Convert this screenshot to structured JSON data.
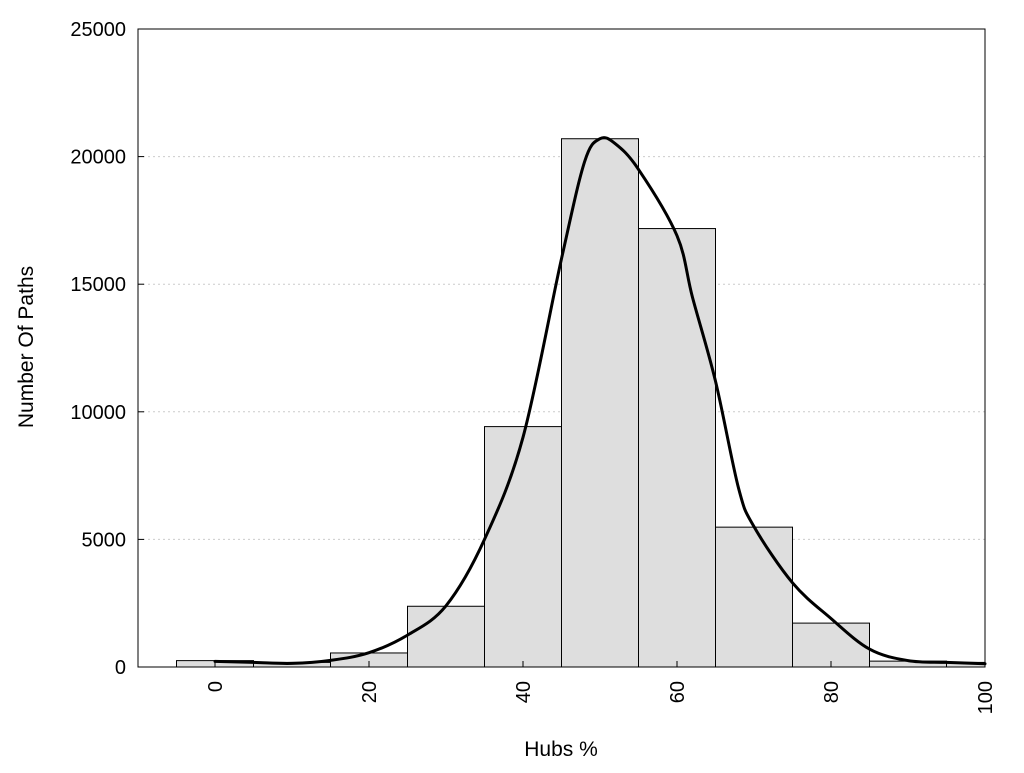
{
  "chart_data": {
    "type": "bar",
    "xlabel": "Hubs %",
    "ylabel": "Number Of Paths",
    "xlim": [
      -10,
      100
    ],
    "ylim": [
      0,
      25000
    ],
    "grid": "horizontal-dotted",
    "x_ticks": [
      "0",
      "20",
      "40",
      "60",
      "80",
      "100"
    ],
    "x_tick_values": [
      0,
      20,
      40,
      60,
      80,
      100
    ],
    "y_ticks": [
      "0",
      "5000",
      "10000",
      "15000",
      "20000",
      "25000"
    ],
    "y_tick_values": [
      0,
      5000,
      10000,
      15000,
      20000,
      25000
    ],
    "bins": [
      {
        "start": -5,
        "end": 5,
        "value": 250
      },
      {
        "start": 5,
        "end": 15,
        "value": 180
      },
      {
        "start": 15,
        "end": 25,
        "value": 550
      },
      {
        "start": 25,
        "end": 35,
        "value": 2380
      },
      {
        "start": 35,
        "end": 45,
        "value": 9420
      },
      {
        "start": 45,
        "end": 55,
        "value": 20700
      },
      {
        "start": 55,
        "end": 65,
        "value": 17180
      },
      {
        "start": 65,
        "end": 75,
        "value": 5480
      },
      {
        "start": 75,
        "end": 85,
        "value": 1720
      },
      {
        "start": 85,
        "end": 95,
        "value": 230
      },
      {
        "start": 95,
        "end": 100,
        "value": 180
      }
    ],
    "curve": {
      "x": [
        0,
        5,
        10,
        15,
        20,
        25,
        30,
        35,
        40,
        45,
        48,
        50,
        52,
        55,
        60,
        62,
        65,
        68,
        70,
        75,
        80,
        85,
        90,
        95,
        100
      ],
      "y": [
        220,
        180,
        140,
        260,
        560,
        1250,
        2400,
        5000,
        9000,
        16000,
        19800,
        20700,
        20500,
        19500,
        16900,
        14500,
        11200,
        7000,
        5500,
        3300,
        1900,
        700,
        250,
        180,
        130
      ]
    },
    "colors": {
      "bar_fill": "#dedede",
      "bar_stroke": "#000000",
      "curve": "#000000",
      "grid": "#cccccc"
    }
  }
}
